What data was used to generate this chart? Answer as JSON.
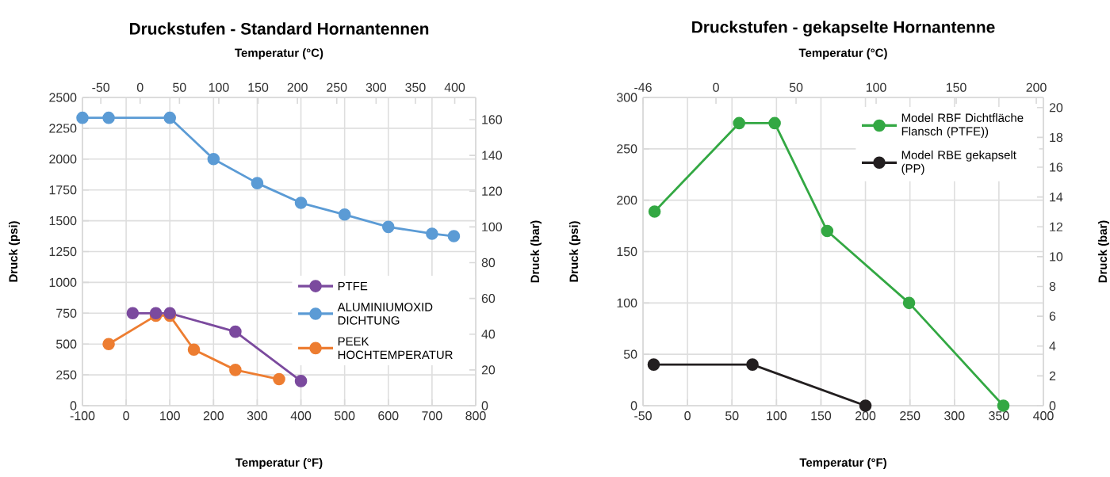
{
  "chart_data": [
    {
      "type": "line",
      "title": "Druckstufen - Standard Hornantennen",
      "xlabel": "Temperatur (°F)",
      "x2label": "Temperatur (°C)",
      "ylabel": "Druck (psi)",
      "y2label": "Druck (bar)",
      "xlim": [
        -100,
        800
      ],
      "xticks": [
        -100,
        0,
        100,
        200,
        300,
        400,
        500,
        600,
        700,
        800
      ],
      "x2lim": [
        -73.33,
        426.67
      ],
      "x2ticks": [
        -50,
        0,
        50,
        100,
        150,
        200,
        250,
        300,
        350,
        400
      ],
      "ylim": [
        0,
        2500
      ],
      "yticks": [
        0,
        250,
        500,
        750,
        1000,
        1250,
        1500,
        1750,
        2000,
        2250,
        2500
      ],
      "y2lim": [
        0,
        172.4
      ],
      "y2ticks": [
        0,
        20,
        40,
        60,
        80,
        100,
        120,
        140,
        160
      ],
      "grid": true,
      "legend": "bottom right",
      "marker": "circle",
      "line_style": "solid",
      "series": [
        {
          "name": "PTFE",
          "color": "#7b4a9e",
          "x": [
            15,
            68,
            100,
            250,
            400
          ],
          "values": [
            750,
            750,
            750,
            600,
            200
          ]
        },
        {
          "name": "ALUMINIUMOXID DICHTUNG",
          "color": "#5b9bd5",
          "x": [
            -100,
            -40,
            100,
            200,
            300,
            400,
            500,
            600,
            700,
            750
          ],
          "values": [
            2335,
            2335,
            2335,
            2000,
            1805,
            1645,
            1550,
            1450,
            1395,
            1375
          ]
        },
        {
          "name": "PEEK HOCHTEMPERATUR",
          "color": "#ed7d31",
          "x": [
            -40,
            68,
            100,
            155,
            250,
            350
          ],
          "values": [
            500,
            730,
            730,
            455,
            290,
            215
          ]
        }
      ]
    },
    {
      "type": "line",
      "title": "Druckstufen - gekapselte Hornantenne",
      "xlabel": "Temperatur (°F)",
      "x2label": "Temperatur (°C)",
      "ylabel": "Druck (psi)",
      "y2label": "Druck (bar)",
      "xlim": [
        -50,
        400
      ],
      "xticks": [
        -50,
        0,
        50,
        100,
        150,
        200,
        250,
        300,
        350,
        400
      ],
      "x2lim": [
        -45.56,
        204.44
      ],
      "x2ticks": [
        {
          "value": -45.56,
          "label": "-46"
        },
        0,
        50,
        100,
        150,
        200
      ],
      "ylim": [
        0,
        300
      ],
      "yticks": [
        0,
        50,
        100,
        150,
        200,
        250,
        300
      ],
      "y2lim": [
        0,
        20.68
      ],
      "y2ticks": [
        0,
        2,
        4,
        6,
        8,
        10,
        12,
        14,
        16,
        18,
        20
      ],
      "grid": true,
      "legend": "top right",
      "marker": "circle",
      "line_style": "solid",
      "series": [
        {
          "name": "Model RBF Dichtfläche Flansch (PTFE))",
          "color": "#33a843",
          "x": [
            -37,
            58,
            98,
            157,
            249,
            355
          ],
          "values": [
            189,
            275,
            275,
            170,
            100,
            0
          ]
        },
        {
          "name": "Model RBE gekapselt (PP)",
          "color": "#231f20",
          "x": [
            -38,
            73,
            200
          ],
          "values": [
            40,
            40,
            0
          ]
        }
      ]
    }
  ]
}
